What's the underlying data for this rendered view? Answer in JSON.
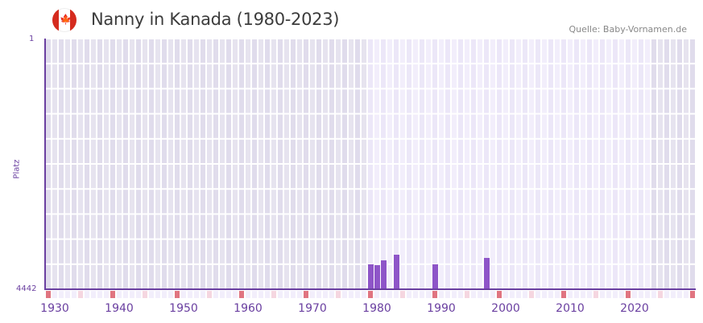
{
  "header": {
    "flag_icon": "canada-flag-icon",
    "title": "Nanny in Kanada (1980-2023)",
    "source": "Quelle: Baby-Vornamen.de"
  },
  "colors": {
    "bar": "#8e55c8",
    "axis": "#6a3fa0",
    "grid_dark": "#e2dfee",
    "grid_light": "#f0ecfb",
    "grid_line": "#ffffff",
    "decade_marker": "#e07480",
    "half_decade_marker": "#f5d6e0",
    "strip_bg": "#f2eefb"
  },
  "chart_data": {
    "type": "bar",
    "title": "Nanny in Kanada (1980-2023)",
    "xlabel": "",
    "ylabel": "Platz",
    "y_inverted": true,
    "ylim": [
      1,
      4442
    ],
    "xlim": [
      1929,
      2029
    ],
    "x_ticks": [
      1930,
      1940,
      1950,
      1960,
      1970,
      1980,
      1990,
      2000,
      2010,
      2020
    ],
    "y_ticks": [
      1,
      4442
    ],
    "data_range_highlight": [
      1980,
      2023
    ],
    "grid": true,
    "categories": [
      1979,
      1980,
      1981,
      1983,
      1989,
      1997
    ],
    "values": [
      4000,
      4015,
      3930,
      3830,
      4000,
      3887
    ]
  },
  "axis": {
    "y_top_label": "1",
    "y_bottom_label": "4442",
    "y_title": "Platz",
    "x_labels": [
      "1930",
      "1940",
      "1950",
      "1960",
      "1970",
      "1980",
      "1990",
      "2000",
      "2010",
      "2020"
    ]
  }
}
